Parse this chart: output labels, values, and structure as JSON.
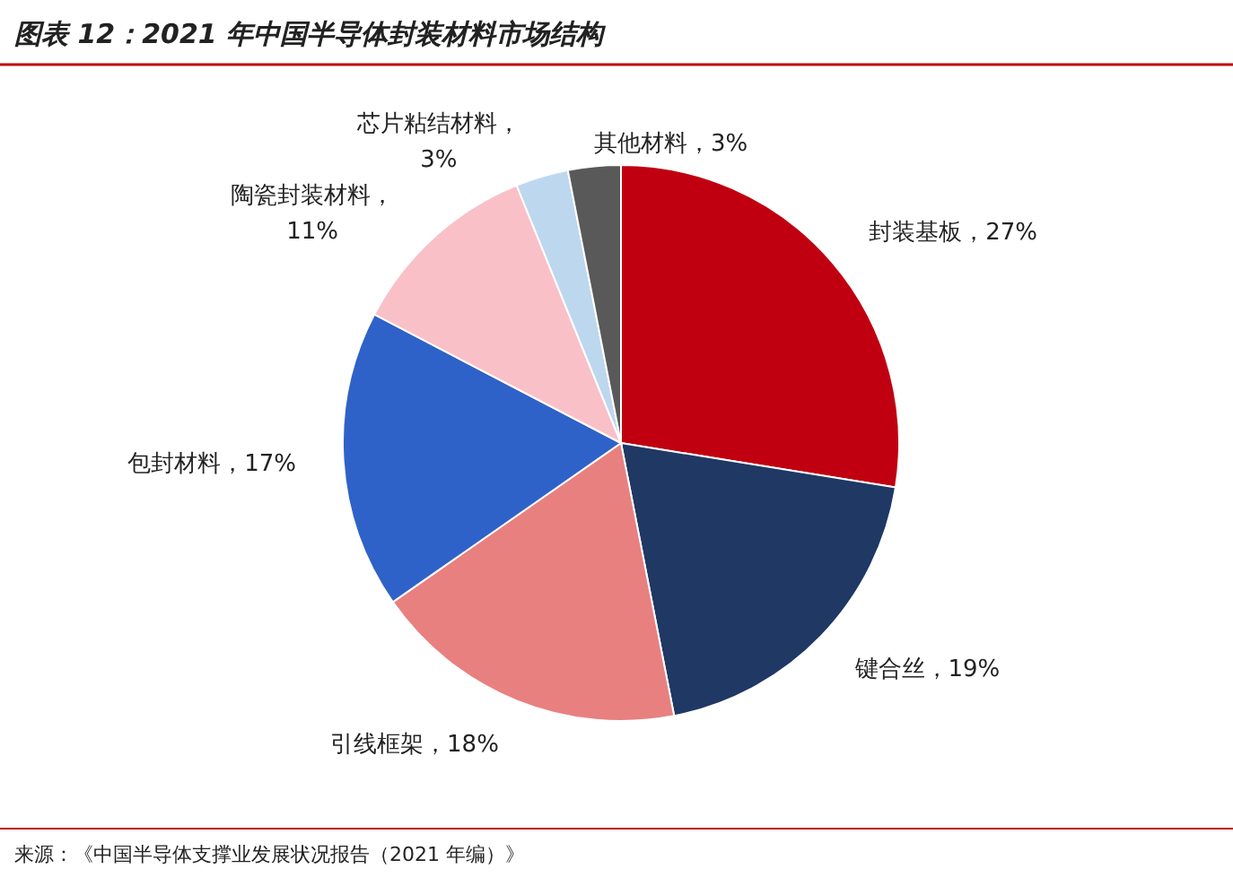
{
  "chart_data": {
    "type": "pie",
    "title": "图表 12：2021 年中国半导体封装材料市场结构",
    "categories": [
      "封装基板，27%",
      "键合丝，19%",
      "引线框架，18%",
      "包封材料，17%",
      "陶瓷封装材料，11%",
      "芯片粘结材料，3%",
      "其他材料，3%"
    ],
    "values": [
      27,
      19,
      18,
      17,
      11,
      3,
      3
    ],
    "colors": [
      "#c00010",
      "#1f3864",
      "#e88080",
      "#2f62c8",
      "#f9c0c8",
      "#bdd7ee",
      "#595959"
    ],
    "annotations": [
      "来源：《中国半导体支撑业发展状况报告（2021 年编）》"
    ]
  }
}
